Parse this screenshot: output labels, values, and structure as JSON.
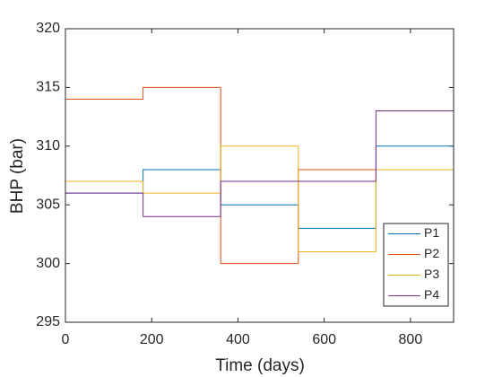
{
  "chart_data": {
    "type": "stairs",
    "xlabel": "Time (days)",
    "ylabel": "BHP (bar)",
    "x": [
      0,
      180,
      360,
      540,
      720,
      900
    ],
    "series": [
      {
        "name": "P1",
        "color": "#0072bd",
        "values": [
          306,
          308,
          305,
          303,
          310,
          310
        ]
      },
      {
        "name": "P2",
        "color": "#d95319",
        "values": [
          314,
          315,
          300,
          308,
          308,
          308
        ]
      },
      {
        "name": "P3",
        "color": "#edb120",
        "values": [
          307,
          306,
          310,
          301,
          308,
          308
        ]
      },
      {
        "name": "P4",
        "color": "#7e2f8e",
        "values": [
          306,
          304,
          307,
          307,
          313,
          313
        ]
      }
    ],
    "xlim": [
      0,
      900
    ],
    "xticks": [
      0,
      200,
      400,
      600,
      800
    ],
    "ylim": [
      295,
      320
    ],
    "yticks": [
      295,
      300,
      305,
      310,
      315,
      320
    ],
    "legend": "southeast",
    "grid": false
  }
}
